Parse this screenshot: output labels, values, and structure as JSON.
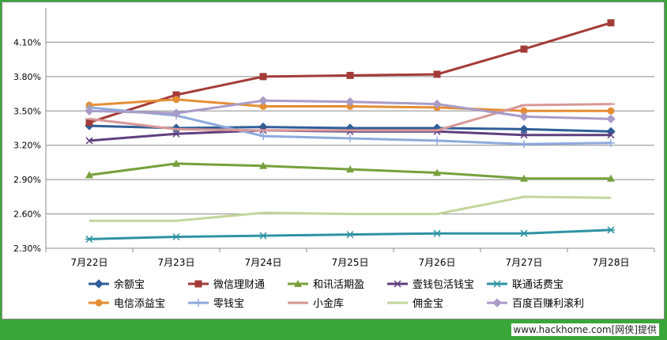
{
  "chart_data": {
    "type": "line",
    "categories": [
      "7月22日",
      "7月23日",
      "7月24日",
      "7月25日",
      "7月26日",
      "7月27日",
      "7月28日"
    ],
    "ylim": [
      2.3,
      4.4
    ],
    "yticks": [
      "2.30%",
      "2.60%",
      "2.90%",
      "3.20%",
      "3.50%",
      "3.80%",
      "4.10%"
    ],
    "ytick_values": [
      2.3,
      2.6,
      2.9,
      3.2,
      3.5,
      3.8,
      4.1
    ],
    "grid": true,
    "legend_position": "bottom",
    "series": [
      {
        "name": "余额宝",
        "color": "#2f5f98",
        "marker": "diamond",
        "values": [
          3.37,
          3.35,
          3.36,
          3.35,
          3.35,
          3.34,
          3.32
        ]
      },
      {
        "name": "微信理财通",
        "color": "#a33c38",
        "marker": "square",
        "values": [
          3.4,
          3.64,
          3.8,
          3.81,
          3.82,
          4.04,
          4.27
        ]
      },
      {
        "name": "和讯活期盈",
        "color": "#76a03c",
        "marker": "triangle",
        "values": [
          2.94,
          3.04,
          3.02,
          2.99,
          2.96,
          2.91,
          2.91
        ]
      },
      {
        "name": "壹钱包活钱宝",
        "color": "#5f3f7f",
        "marker": "x",
        "values": [
          3.24,
          3.3,
          3.33,
          3.32,
          3.32,
          3.29,
          3.29
        ]
      },
      {
        "name": "联通话费宝",
        "color": "#2f93a4",
        "marker": "star",
        "values": [
          2.38,
          2.4,
          2.41,
          2.42,
          2.43,
          2.43,
          2.46
        ]
      },
      {
        "name": "电信添益宝",
        "color": "#e48e34",
        "marker": "circle",
        "values": [
          3.55,
          3.6,
          3.54,
          3.54,
          3.53,
          3.5,
          3.5
        ]
      },
      {
        "name": "零钱宝",
        "color": "#8eaadc",
        "marker": "plus",
        "values": [
          3.53,
          3.46,
          3.28,
          3.26,
          3.24,
          3.21,
          3.22
        ]
      },
      {
        "name": "小金库",
        "color": "#d89898",
        "marker": "dash",
        "values": [
          3.43,
          3.34,
          3.33,
          3.33,
          3.33,
          3.55,
          3.56
        ]
      },
      {
        "name": "佣金宝",
        "color": "#c3d69b",
        "marker": "none",
        "values": [
          2.54,
          2.54,
          2.61,
          2.6,
          2.6,
          2.75,
          2.74
        ]
      },
      {
        "name": "百度百赚利滚利",
        "color": "#a99bc8",
        "marker": "diamond",
        "values": [
          3.5,
          3.48,
          3.59,
          3.58,
          3.56,
          3.45,
          3.43
        ]
      }
    ]
  },
  "footer": {
    "watermark": "www.hackhome.com[网侠]提供"
  }
}
